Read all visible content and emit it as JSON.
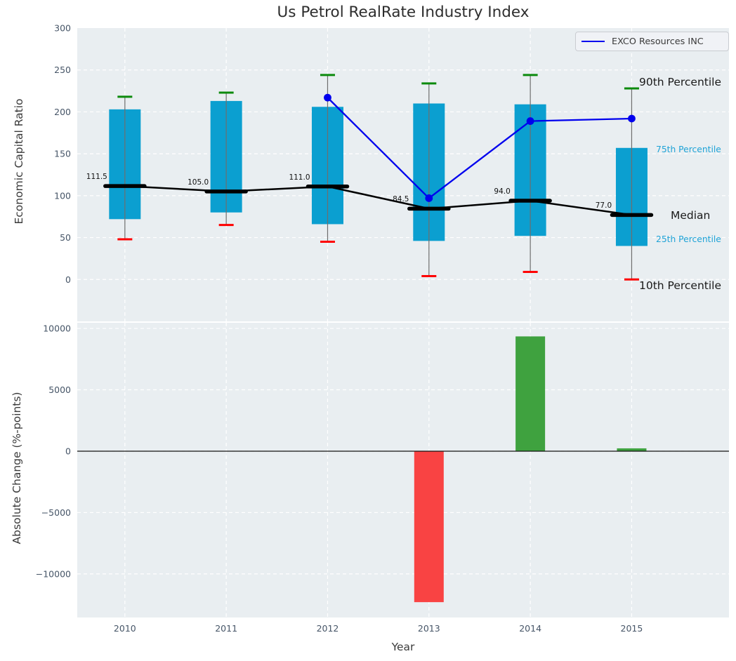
{
  "figure": {
    "title": "Us Petrol RealRate Industry Index"
  },
  "colors": {
    "figure_background": "#ffffff",
    "axes_background": "#e9eef1",
    "gridline": "#ffffff",
    "tick_label": "#465567",
    "box_fill": "#0b9fd0",
    "whisker": "#6e6e6e",
    "cap_90th": "#0c8a0c",
    "cap_10th": "#fe0000",
    "median": "#000000",
    "exco_line": "#0000ee",
    "bar_negative": "#f94343",
    "bar_positive": "#3fa23f",
    "percentile_label_cyan": "#1fa3d7"
  },
  "chart_data": [
    {
      "type": "boxplot",
      "title": "Us Petrol RealRate Industry Index",
      "ylabel": "Economic Capital Ratio",
      "ylim": [
        -50,
        300
      ],
      "yticks": [
        300,
        250,
        200,
        150,
        100,
        50,
        0
      ],
      "grid": "on",
      "categories": [
        2010,
        2011,
        2012,
        2013,
        2014,
        2015
      ],
      "boxes": [
        {
          "year": 2010,
          "p10": 48,
          "p25": 72,
          "median": 111.5,
          "p75": 203,
          "p90": 218,
          "median_label": "111.5"
        },
        {
          "year": 2011,
          "p10": 65,
          "p25": 80,
          "median": 105.0,
          "p75": 213,
          "p90": 223,
          "median_label": "105.0"
        },
        {
          "year": 2012,
          "p10": 45,
          "p25": 66,
          "median": 111.0,
          "p75": 206,
          "p90": 244,
          "median_label": "111.0"
        },
        {
          "year": 2013,
          "p10": 4,
          "p25": 46,
          "median": 84.5,
          "p75": 210,
          "p90": 234,
          "median_label": "84.5"
        },
        {
          "year": 2014,
          "p10": 9,
          "p25": 52,
          "median": 94.0,
          "p75": 209,
          "p90": 244,
          "median_label": "94.0"
        },
        {
          "year": 2015,
          "p10": 0,
          "p25": 40,
          "median": 77.0,
          "p75": 157,
          "p90": 228,
          "median_label": "77.0"
        }
      ],
      "series": [
        {
          "name": "EXCO Resources INC",
          "x": [
            2012,
            2013,
            2014,
            2015
          ],
          "y": [
            217,
            97,
            189,
            192
          ]
        }
      ],
      "legend": {
        "label": "EXCO Resources INC",
        "position": "upper right"
      },
      "right_labels": [
        {
          "text": "90th Percentile",
          "kind": "large",
          "x": 910,
          "y": 117
        },
        {
          "text": "75th Percentile",
          "kind": "small",
          "x": 934,
          "y": 213
        },
        {
          "text": "Median",
          "kind": "large",
          "x": 955,
          "y": 307
        },
        {
          "text": "25th Percentile",
          "kind": "small",
          "x": 934,
          "y": 341
        },
        {
          "text": "10th Percentile",
          "kind": "large",
          "x": 910,
          "y": 407
        }
      ]
    },
    {
      "type": "bar",
      "ylabel": "Absolute Change (%-points)",
      "xlabel": "Year",
      "ylim": [
        -13550,
        10460
      ],
      "yticks": [
        10000,
        5000,
        0,
        -5000,
        -10000
      ],
      "grid": "on",
      "categories": [
        2010,
        2011,
        2012,
        2013,
        2014,
        2015
      ],
      "values": [
        null,
        null,
        null,
        -12300,
        9350,
        230
      ]
    }
  ]
}
